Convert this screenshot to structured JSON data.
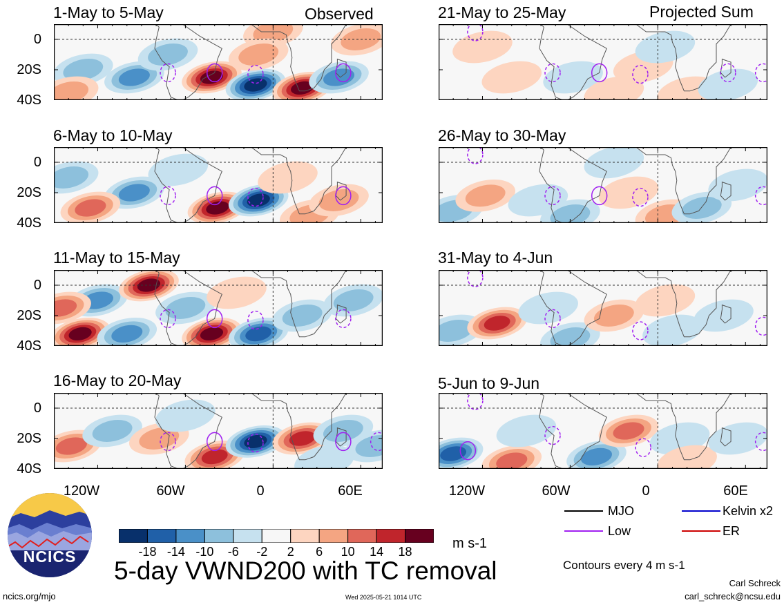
{
  "figure": {
    "title": "5-day VWND200 with TC removal",
    "units": "m s-1",
    "contour_note": "Contours every 4 m s-1",
    "site": "ncics.org/mjo",
    "timestamp": "Wed 2025-05-21 1014 UTC",
    "author": "Carl Schreck",
    "email": "carl_schreck@ncsu.edu",
    "logo_text": "NCICS",
    "observed_label": "Observed",
    "projected_label": "Projected Sum"
  },
  "colors": {
    "neg": [
      "#08306b",
      "#2060a8",
      "#4a90c8",
      "#8dc0dc",
      "#c6e1ef"
    ],
    "neutral": "#f7f7f7",
    "pos": [
      "#fdd5c0",
      "#f4a582",
      "#e0675a",
      "#c0252c",
      "#67001f"
    ],
    "mjo": "#000000",
    "low": "#a020f0",
    "kelvin": "#0000cc",
    "er": "#cc0000"
  },
  "legend": {
    "items": [
      {
        "label": "MJO",
        "key": "mjo",
        "style": "solid"
      },
      {
        "label": "Kelvin x2",
        "key": "kelvin",
        "style": "solid"
      },
      {
        "label": "Low",
        "key": "low",
        "style": "solid"
      },
      {
        "label": "ER",
        "key": "er",
        "style": "solid"
      }
    ]
  },
  "colorbar": {
    "ticks": [
      "-18",
      "-14",
      "-10",
      "-6",
      "-2",
      "2",
      "6",
      "10",
      "14",
      "18"
    ]
  },
  "axes": {
    "y_ticks": [
      "0",
      "20S",
      "40S"
    ],
    "x_ticks": [
      "120W",
      "60W",
      "0",
      "60E"
    ]
  },
  "chart_data": [
    {
      "type": "heatmap",
      "variable": "VWND200 anomaly",
      "period": "1-May to 5-May",
      "title": "1-May to 5-May",
      "column": "Observed",
      "lon_range": [
        -150,
        75
      ],
      "lat_range": [
        -40,
        10
      ],
      "blobs": [
        {
          "lon": -95,
          "lat": -25,
          "value": -10
        },
        {
          "lon": -72,
          "lat": -10,
          "value": -6
        },
        {
          "lon": -42,
          "lat": -25,
          "value": 18
        },
        {
          "lon": -12,
          "lat": -30,
          "value": -20
        },
        {
          "lon": 20,
          "lat": -32,
          "value": 22
        },
        {
          "lon": 45,
          "lat": -25,
          "value": -12
        },
        {
          "lon": 0,
          "lat": 5,
          "value": 6
        },
        {
          "lon": 60,
          "lat": 0,
          "value": 6
        },
        {
          "lon": -130,
          "lat": -20,
          "value": -6
        },
        {
          "lon": -140,
          "lat": -35,
          "value": 6
        },
        {
          "lon": -10,
          "lat": -10,
          "value": 6
        }
      ],
      "tc_contours": [
        {
          "lon": -40,
          "lat": -22,
          "kind": "low",
          "style": "solid"
        },
        {
          "lon": -12,
          "lat": -23,
          "kind": "low",
          "style": "dashed"
        },
        {
          "lon": 48,
          "lat": -22,
          "kind": "low",
          "style": "solid"
        },
        {
          "lon": -72,
          "lat": -22,
          "kind": "low",
          "style": "dashed"
        }
      ]
    },
    {
      "type": "heatmap",
      "variable": "VWND200 anomaly",
      "period": "6-May to 10-May",
      "title": "6-May to 10-May",
      "column": "Observed",
      "lon_range": [
        -150,
        75
      ],
      "lat_range": [
        -40,
        10
      ],
      "blobs": [
        {
          "lon": -95,
          "lat": -20,
          "value": -10
        },
        {
          "lon": -125,
          "lat": -30,
          "value": 10
        },
        {
          "lon": -38,
          "lat": -30,
          "value": 18
        },
        {
          "lon": -10,
          "lat": -25,
          "value": -22
        },
        {
          "lon": 25,
          "lat": -35,
          "value": 6
        },
        {
          "lon": 45,
          "lat": -25,
          "value": 8
        },
        {
          "lon": -65,
          "lat": -5,
          "value": -4
        },
        {
          "lon": 10,
          "lat": -10,
          "value": 4
        },
        {
          "lon": -140,
          "lat": -10,
          "value": -6
        }
      ],
      "tc_contours": [
        {
          "lon": -40,
          "lat": -22,
          "kind": "low",
          "style": "solid"
        },
        {
          "lon": -12,
          "lat": -23,
          "kind": "low",
          "style": "dashed"
        },
        {
          "lon": 48,
          "lat": -22,
          "kind": "low",
          "style": "solid"
        },
        {
          "lon": -72,
          "lat": -22,
          "kind": "low",
          "style": "dashed"
        }
      ]
    },
    {
      "type": "heatmap",
      "variable": "VWND200 anomaly",
      "period": "11-May to 15-May",
      "title": "11-May to 15-May",
      "column": "Observed",
      "lon_range": [
        -150,
        75
      ],
      "lat_range": [
        -40,
        10
      ],
      "blobs": [
        {
          "lon": -132,
          "lat": -32,
          "value": 18
        },
        {
          "lon": -120,
          "lat": -10,
          "value": -10
        },
        {
          "lon": -85,
          "lat": 0,
          "value": 20
        },
        {
          "lon": -100,
          "lat": -32,
          "value": -12
        },
        {
          "lon": -42,
          "lat": -32,
          "value": 18
        },
        {
          "lon": -10,
          "lat": -32,
          "value": -16
        },
        {
          "lon": 20,
          "lat": -20,
          "value": -8
        },
        {
          "lon": 55,
          "lat": -10,
          "value": -6
        },
        {
          "lon": -145,
          "lat": -15,
          "value": 12
        },
        {
          "lon": -60,
          "lat": -15,
          "value": -6
        },
        {
          "lon": -25,
          "lat": -5,
          "value": 4
        }
      ],
      "tc_contours": [
        {
          "lon": -40,
          "lat": -22,
          "kind": "low",
          "style": "solid"
        },
        {
          "lon": -12,
          "lat": -23,
          "kind": "low",
          "style": "dashed"
        },
        {
          "lon": 48,
          "lat": -22,
          "kind": "low",
          "style": "dashed"
        },
        {
          "lon": -72,
          "lat": -22,
          "kind": "low",
          "style": "dashed"
        }
      ]
    },
    {
      "type": "heatmap",
      "variable": "VWND200 anomaly",
      "period": "16-May to 20-May",
      "title": "16-May to 20-May",
      "column": "Observed",
      "lon_range": [
        -150,
        75
      ],
      "lat_range": [
        -40,
        10
      ],
      "blobs": [
        {
          "lon": -138,
          "lat": -25,
          "value": 10
        },
        {
          "lon": -110,
          "lat": -15,
          "value": -6
        },
        {
          "lon": -78,
          "lat": -20,
          "value": 8
        },
        {
          "lon": -40,
          "lat": -32,
          "value": 16
        },
        {
          "lon": -12,
          "lat": -22,
          "value": -22
        },
        {
          "lon": 20,
          "lat": -20,
          "value": 16
        },
        {
          "lon": 48,
          "lat": -15,
          "value": -8
        },
        {
          "lon": -60,
          "lat": -5,
          "value": -4
        },
        {
          "lon": 70,
          "lat": -25,
          "value": -6
        },
        {
          "lon": 35,
          "lat": -35,
          "value": -4
        }
      ],
      "tc_contours": [
        {
          "lon": -40,
          "lat": -22,
          "kind": "low",
          "style": "solid"
        },
        {
          "lon": -12,
          "lat": -23,
          "kind": "low",
          "style": "dashed"
        },
        {
          "lon": 48,
          "lat": -22,
          "kind": "low",
          "style": "solid"
        },
        {
          "lon": -72,
          "lat": -22,
          "kind": "low",
          "style": "dashed"
        },
        {
          "lon": 72,
          "lat": -22,
          "kind": "low",
          "style": "dashed"
        }
      ]
    },
    {
      "type": "heatmap",
      "variable": "VWND200 anomaly",
      "period": "21-May to 25-May",
      "title": "21-May to 25-May",
      "column": "Projected Sum",
      "lon_range": [
        -150,
        75
      ],
      "lat_range": [
        -40,
        10
      ],
      "blobs": [
        {
          "lon": -120,
          "lat": -5,
          "value": 3
        },
        {
          "lon": -100,
          "lat": -25,
          "value": 4
        },
        {
          "lon": -58,
          "lat": -25,
          "value": -4
        },
        {
          "lon": -10,
          "lat": -18,
          "value": 3
        },
        {
          "lon": 20,
          "lat": -35,
          "value": 4
        },
        {
          "lon": 48,
          "lat": -30,
          "value": -5
        },
        {
          "lon": -30,
          "lat": -35,
          "value": 3
        },
        {
          "lon": 5,
          "lat": -5,
          "value": -2
        }
      ],
      "tc_contours": [
        {
          "lon": -40,
          "lat": -22,
          "kind": "low",
          "style": "solid"
        },
        {
          "lon": -12,
          "lat": -23,
          "kind": "low",
          "style": "dashed"
        },
        {
          "lon": 48,
          "lat": -22,
          "kind": "low",
          "style": "dashed"
        },
        {
          "lon": -72,
          "lat": -22,
          "kind": "low",
          "style": "dashed"
        },
        {
          "lon": 72,
          "lat": -22,
          "kind": "low",
          "style": "dashed"
        },
        {
          "lon": -125,
          "lat": 5,
          "kind": "low",
          "style": "dashed"
        }
      ]
    },
    {
      "type": "heatmap",
      "variable": "VWND200 anomaly",
      "period": "26-May to 30-May",
      "title": "26-May to 30-May",
      "column": "Projected Sum",
      "lon_range": [
        -150,
        75
      ],
      "lat_range": [
        -40,
        10
      ],
      "blobs": [
        {
          "lon": -140,
          "lat": -32,
          "value": -8
        },
        {
          "lon": -118,
          "lat": -22,
          "value": 6
        },
        {
          "lon": -82,
          "lat": -25,
          "value": -5
        },
        {
          "lon": -60,
          "lat": -35,
          "value": -8
        },
        {
          "lon": -20,
          "lat": -20,
          "value": 5
        },
        {
          "lon": 5,
          "lat": -35,
          "value": 8
        },
        {
          "lon": 30,
          "lat": -30,
          "value": -6
        },
        {
          "lon": 55,
          "lat": -15,
          "value": -3
        },
        {
          "lon": -30,
          "lat": 0,
          "value": -3
        }
      ],
      "tc_contours": [
        {
          "lon": -40,
          "lat": -22,
          "kind": "low",
          "style": "solid"
        },
        {
          "lon": -12,
          "lat": -23,
          "kind": "low",
          "style": "dashed"
        },
        {
          "lon": 72,
          "lat": -22,
          "kind": "low",
          "style": "dashed"
        },
        {
          "lon": -72,
          "lat": -22,
          "kind": "low",
          "style": "dashed"
        },
        {
          "lon": -125,
          "lat": 5,
          "kind": "low",
          "style": "dashed"
        }
      ]
    },
    {
      "type": "heatmap",
      "variable": "VWND200 anomaly",
      "period": "31-May to 4-Jun",
      "title": "31-May to 4-Jun",
      "column": "Projected Sum",
      "lon_range": [
        -150,
        75
      ],
      "lat_range": [
        -40,
        10
      ],
      "blobs": [
        {
          "lon": -140,
          "lat": -30,
          "value": -8
        },
        {
          "lon": -110,
          "lat": -25,
          "value": 14
        },
        {
          "lon": -75,
          "lat": -15,
          "value": -4
        },
        {
          "lon": -60,
          "lat": -35,
          "value": -6
        },
        {
          "lon": -30,
          "lat": -20,
          "value": 6
        },
        {
          "lon": 10,
          "lat": -30,
          "value": -4
        },
        {
          "lon": 5,
          "lat": -10,
          "value": 3
        },
        {
          "lon": 45,
          "lat": -20,
          "value": -2
        }
      ],
      "tc_contours": [
        {
          "lon": -72,
          "lat": -22,
          "kind": "low",
          "style": "dashed"
        },
        {
          "lon": -125,
          "lat": 5,
          "kind": "low",
          "style": "dashed"
        },
        {
          "lon": -12,
          "lat": -30,
          "kind": "low",
          "style": "dashed"
        },
        {
          "lon": 72,
          "lat": -27,
          "kind": "low",
          "style": "dashed"
        }
      ]
    },
    {
      "type": "heatmap",
      "variable": "VWND200 anomaly",
      "period": "5-Jun to 9-Jun",
      "title": "5-Jun to 9-Jun",
      "column": "Projected Sum",
      "lon_range": [
        -150,
        75
      ],
      "lat_range": [
        -40,
        10
      ],
      "blobs": [
        {
          "lon": -140,
          "lat": -30,
          "value": -14
        },
        {
          "lon": -100,
          "lat": -35,
          "value": 12
        },
        {
          "lon": -90,
          "lat": -15,
          "value": -4
        },
        {
          "lon": -42,
          "lat": -32,
          "value": -12
        },
        {
          "lon": -20,
          "lat": -15,
          "value": 12
        },
        {
          "lon": 15,
          "lat": -20,
          "value": -4
        },
        {
          "lon": 20,
          "lat": -35,
          "value": 3
        },
        {
          "lon": 55,
          "lat": -20,
          "value": -3
        }
      ],
      "tc_contours": [
        {
          "lon": -72,
          "lat": -18,
          "kind": "low",
          "style": "dashed"
        },
        {
          "lon": -125,
          "lat": 5,
          "kind": "low",
          "style": "dashed"
        },
        {
          "lon": -130,
          "lat": -28,
          "kind": "low",
          "style": "solid"
        },
        {
          "lon": -10,
          "lat": -26,
          "kind": "low",
          "style": "dashed"
        },
        {
          "lon": 72,
          "lat": -22,
          "kind": "low",
          "style": "dashed"
        }
      ]
    }
  ]
}
